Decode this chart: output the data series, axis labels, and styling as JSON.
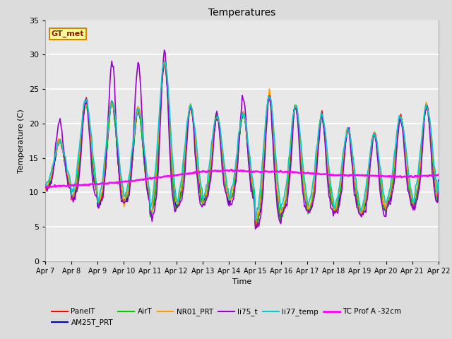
{
  "title": "Temperatures",
  "xlabel": "Time",
  "ylabel": "Temperature (C)",
  "ylim": [
    0,
    35
  ],
  "xlim": [
    0,
    15
  ],
  "fig_bg": "#dcdcdc",
  "plot_bg": "#e8e8e8",
  "annotation_text": "GT_met",
  "annotation_bg": "#ffff99",
  "annotation_border": "#cc8800",
  "x_tick_labels": [
    "Apr 7",
    "Apr 8",
    "Apr 9",
    "Apr 10",
    "Apr 11",
    "Apr 12",
    "Apr 13",
    "Apr 14",
    "Apr 15",
    "Apr 16",
    "Apr 17",
    "Apr 18",
    "Apr 19",
    "Apr 20",
    "Apr 21",
    "Apr 22"
  ],
  "series_order": [
    "PanelT",
    "AM25T_PRT",
    "AirT",
    "NR01_PRT",
    "li75_t",
    "li77_temp",
    "TC Prof A -32cm"
  ],
  "colors": {
    "PanelT": "#ff0000",
    "AM25T_PRT": "#0000cc",
    "AirT": "#00cc00",
    "NR01_PRT": "#ff9900",
    "li75_t": "#9900cc",
    "li77_temp": "#00cccc",
    "TC Prof A -32cm": "#ff00ff"
  },
  "lws": {
    "PanelT": 1.2,
    "AM25T_PRT": 1.2,
    "AirT": 1.2,
    "NR01_PRT": 1.2,
    "li75_t": 1.2,
    "li77_temp": 1.2,
    "TC Prof A -32cm": 1.8
  },
  "peaks": [
    17.5,
    23.2,
    23.0,
    22.0,
    29.0,
    22.5,
    21.0,
    21.5,
    24.0,
    22.5,
    21.0,
    19.0,
    18.5,
    21.0,
    22.5,
    25.0
  ],
  "troughs": [
    10.5,
    9.0,
    8.0,
    8.5,
    6.5,
    8.0,
    8.5,
    8.5,
    5.0,
    7.0,
    7.0,
    7.0,
    6.5,
    8.0,
    8.0,
    11.0
  ],
  "tc_vals": [
    10.8,
    11.0,
    11.2,
    11.5,
    12.0,
    12.5,
    13.0,
    13.2,
    13.0,
    13.0,
    12.8,
    12.5,
    12.5,
    12.3,
    12.3,
    12.5
  ],
  "li75_peaks": [
    20.5,
    23.2,
    29.0,
    29.0,
    30.5,
    22.5,
    21.2,
    24.0,
    24.0,
    22.5,
    21.0,
    19.0,
    18.5,
    21.0,
    22.5,
    25.0
  ],
  "spike_day": 10,
  "spike_peak": 30.5
}
